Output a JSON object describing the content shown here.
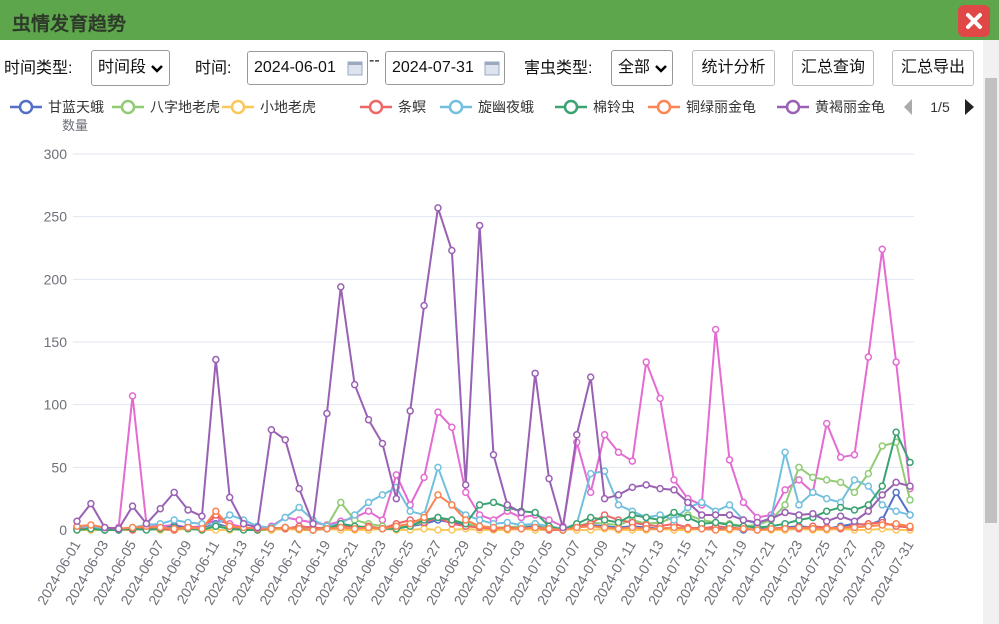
{
  "header": {
    "title": "虫情发育趋势"
  },
  "toolbar": {
    "time_type_label": "时间类型:",
    "time_type": "时间段",
    "time_label": "时间:",
    "start_date": "2024-06-01",
    "separator": "--",
    "end_date": "2024-07-31",
    "pest_type_label": "害虫类型:",
    "pest_type": "全部",
    "buttons": [
      "统计分析",
      "汇总查询",
      "汇总导出"
    ]
  },
  "chart_data": {
    "type": "line",
    "y_axis_label": "数量",
    "legend_page": "1/5",
    "grid": true,
    "ylim": [
      0,
      300
    ],
    "yticks": [
      0,
      50,
      100,
      150,
      200,
      250,
      300
    ],
    "categories": [
      "2024-06-01",
      null,
      "2024-06-03",
      null,
      "2024-06-05",
      null,
      "2024-06-07",
      null,
      "2024-06-09",
      null,
      "2024-06-11",
      null,
      "2024-06-13",
      null,
      "2024-06-15",
      null,
      "2024-06-17",
      null,
      "2024-06-19",
      null,
      "2024-06-21",
      null,
      "2024-06-23",
      null,
      "2024-06-25",
      null,
      "2024-06-27",
      null,
      "2024-06-29",
      null,
      "2024-07-01",
      null,
      "2024-07-03",
      null,
      "2024-07-05",
      null,
      "2024-07-07",
      null,
      "2024-07-09",
      null,
      "2024-07-11",
      null,
      "2024-07-13",
      null,
      "2024-07-15",
      null,
      "2024-07-17",
      null,
      "2024-07-19",
      null,
      "2024-07-21",
      null,
      "2024-07-23",
      null,
      "2024-07-25",
      null,
      "2024-07-27",
      null,
      "2024-07-29",
      null,
      "2024-07-31"
    ],
    "series": [
      {
        "color": "#e36bd2",
        "values": [
          2,
          3,
          1,
          2,
          107,
          5,
          3,
          4,
          2,
          3,
          8,
          5,
          2,
          1,
          3,
          10,
          8,
          6,
          4,
          7,
          10,
          15,
          8,
          44,
          20,
          42,
          94,
          82,
          30,
          12,
          8,
          15,
          10,
          12,
          8,
          3,
          70,
          30,
          76,
          62,
          55,
          134,
          105,
          40,
          25,
          20,
          160,
          56,
          22,
          10,
          12,
          32,
          40,
          30,
          85,
          58,
          60,
          138,
          224,
          134,
          33
        ]
      },
      {
        "name": "甘蓝天蛾",
        "color": "#5470c6",
        "values": [
          2,
          1,
          0,
          0,
          1,
          2,
          1,
          3,
          2,
          1,
          5,
          2,
          1,
          0,
          1,
          2,
          1,
          0,
          2,
          5,
          3,
          2,
          1,
          2,
          3,
          5,
          8,
          6,
          4,
          3,
          2,
          1,
          2,
          3,
          1,
          0,
          2,
          4,
          3,
          2,
          3,
          2,
          1,
          2,
          1,
          2,
          1,
          1,
          0,
          1,
          1,
          2,
          3,
          2,
          1,
          3,
          5,
          4,
          8,
          30,
          12
        ]
      },
      {
        "name": "八字地老虎",
        "color": "#91cc75",
        "values": [
          1,
          0,
          0,
          0,
          1,
          1,
          0,
          2,
          1,
          1,
          3,
          2,
          1,
          0,
          0,
          1,
          2,
          0,
          3,
          22,
          8,
          5,
          3,
          2,
          4,
          6,
          10,
          8,
          5,
          3,
          2,
          2,
          3,
          5,
          2,
          0,
          3,
          6,
          5,
          4,
          8,
          5,
          6,
          10,
          12,
          8,
          6,
          5,
          3,
          4,
          8,
          20,
          50,
          42,
          40,
          38,
          30,
          45,
          67,
          70,
          24
        ]
      },
      {
        "name": "小地老虎",
        "color": "#fac858",
        "values": [
          0,
          0,
          1,
          0,
          0,
          1,
          0,
          0,
          1,
          0,
          0,
          0,
          1,
          0,
          0,
          1,
          0,
          0,
          1,
          0,
          0,
          0,
          1,
          0,
          0,
          1,
          0,
          0,
          1,
          0,
          0,
          0,
          1,
          0,
          0,
          1,
          0,
          0,
          1,
          0,
          0,
          0,
          1,
          0,
          0,
          1,
          0,
          0,
          1,
          0,
          0,
          0,
          1,
          0,
          0,
          1,
          0,
          0,
          1,
          0,
          0
        ]
      },
      {
        "name": "条螟",
        "color": "#ee6666",
        "values": [
          1,
          2,
          0,
          1,
          0,
          2,
          1,
          0,
          3,
          1,
          12,
          3,
          1,
          0,
          2,
          1,
          3,
          2,
          1,
          4,
          2,
          3,
          1,
          5,
          8,
          6,
          10,
          5,
          3,
          2,
          1,
          2,
          1,
          2,
          0,
          0,
          3,
          5,
          12,
          8,
          6,
          4,
          3,
          5,
          2,
          1,
          3,
          2,
          1,
          0,
          1,
          2,
          1,
          3,
          2,
          1,
          4,
          5,
          6,
          3,
          2
        ]
      },
      {
        "name": "旋幽夜蛾",
        "color": "#73c0de",
        "values": [
          3,
          2,
          1,
          0,
          2,
          4,
          5,
          8,
          6,
          5,
          4,
          12,
          8,
          3,
          2,
          10,
          18,
          8,
          3,
          5,
          12,
          22,
          28,
          34,
          15,
          12,
          50,
          20,
          12,
          8,
          5,
          6,
          4,
          5,
          3,
          1,
          5,
          45,
          47,
          20,
          15,
          10,
          12,
          8,
          18,
          22,
          15,
          20,
          8,
          5,
          10,
          62,
          20,
          30,
          25,
          22,
          40,
          35,
          20,
          15,
          12
        ]
      },
      {
        "name": "棉铃虫",
        "color": "#3ba272",
        "values": [
          0,
          1,
          0,
          0,
          1,
          0,
          1,
          2,
          1,
          0,
          3,
          1,
          0,
          0,
          1,
          2,
          1,
          0,
          1,
          5,
          3,
          2,
          1,
          1,
          3,
          8,
          10,
          8,
          5,
          20,
          22,
          18,
          15,
          14,
          3,
          0,
          5,
          10,
          8,
          6,
          12,
          10,
          8,
          14,
          10,
          5,
          6,
          4,
          3,
          2,
          3,
          5,
          8,
          10,
          15,
          18,
          16,
          20,
          35,
          78,
          54
        ]
      },
      {
        "name": "铜绿丽金龟",
        "color": "#fc8452",
        "values": [
          3,
          4,
          2,
          1,
          2,
          3,
          2,
          1,
          2,
          1,
          15,
          3,
          2,
          1,
          1,
          2,
          1,
          0,
          1,
          2,
          1,
          2,
          1,
          3,
          5,
          10,
          28,
          20,
          8,
          3,
          2,
          1,
          1,
          2,
          1,
          0,
          2,
          3,
          2,
          1,
          2,
          1,
          1,
          2,
          1,
          1,
          0,
          1,
          1,
          0,
          1,
          1,
          2,
          1,
          1,
          2,
          2,
          3,
          4,
          5,
          3
        ]
      },
      {
        "name": "黄褐丽金龟",
        "color": "#9a60b4",
        "values": [
          7,
          21,
          2,
          1,
          19,
          5,
          17,
          30,
          16,
          11,
          136,
          26,
          5,
          2,
          80,
          72,
          33,
          5,
          93,
          194,
          116,
          88,
          69,
          25,
          95,
          179,
          257,
          223,
          36,
          243,
          60,
          20,
          14,
          125,
          41,
          2,
          76,
          122,
          25,
          28,
          34,
          36,
          33,
          32,
          22,
          12,
          12,
          12,
          8,
          6,
          9,
          14,
          12,
          13,
          7,
          11,
          7,
          15,
          28,
          38,
          35
        ]
      }
    ]
  }
}
